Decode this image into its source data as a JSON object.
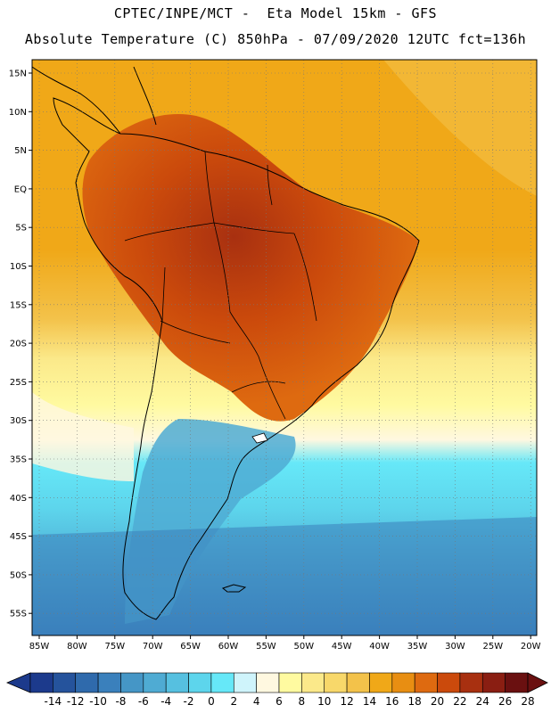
{
  "header": {
    "line1": "CPTEC/INPE/MCT -  Eta Model 15km - GFS",
    "line2": "Absolute Temperature (C) 850hPa - 07/09/2020 12UTC fct=136h"
  },
  "map": {
    "lat_labels": [
      "15N",
      "10N",
      "5N",
      "EQ",
      "5S",
      "10S",
      "15S",
      "20S",
      "25S",
      "30S",
      "35S",
      "40S",
      "45S",
      "50S",
      "55S"
    ],
    "lon_labels": [
      "85W",
      "80W",
      "75W",
      "70W",
      "65W",
      "60W",
      "55W",
      "50W",
      "45W",
      "40W",
      "35W",
      "30W",
      "25W",
      "20W"
    ]
  },
  "colorbar": {
    "labels": [
      "-14",
      "-12",
      "-10",
      "-8",
      "-6",
      "-4",
      "-2",
      "0",
      "2",
      "4",
      "6",
      "8",
      "10",
      "12",
      "14",
      "16",
      "18",
      "20",
      "22",
      "24",
      "26",
      "28"
    ],
    "colors": [
      "#1c3a8c",
      "#25539c",
      "#2f6aac",
      "#3a80bc",
      "#4596c6",
      "#4fabd3",
      "#56c0e0",
      "#5dd5ec",
      "#66e8f8",
      "#cff4fb",
      "#fff8e0",
      "#fffaa0",
      "#fbe98a",
      "#f8d86a",
      "#f3c24a",
      "#f0a818",
      "#e88e12",
      "#de6a10",
      "#cb4a0c",
      "#a83010",
      "#8a1e12",
      "#6a1010"
    ]
  },
  "colors": {
    "ocean_north": "#f0a818",
    "ocean_south": "#4596c6",
    "land_hot": "#cb4a0c",
    "coast": "#000000"
  }
}
